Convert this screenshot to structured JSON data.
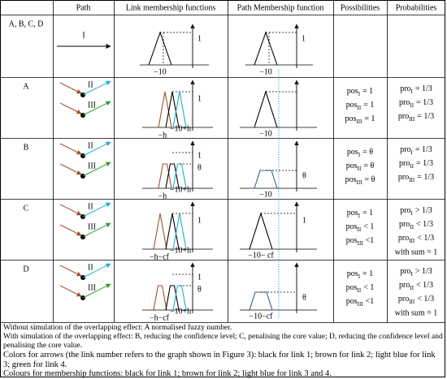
{
  "header": [
    "Path",
    "Link membership functions",
    "Path Membership function",
    "Possibilities",
    "Probabilities"
  ],
  "rows": [
    {
      "label": "A, B, C, D",
      "arrow_label": "I",
      "link_labels": [
        "−10",
        "1"
      ],
      "path_labels": [
        "−10",
        "1"
      ]
    },
    {
      "label": "A",
      "arrow_labels": [
        "II",
        "III"
      ],
      "link_labels": [
        "1",
        "−h",
        "−10+h"
      ],
      "path_labels": [
        "−10"
      ],
      "possibilities": [
        {
          "base": "pos",
          "sub": "I",
          "rest": "= 1"
        },
        {
          "base": "pos",
          "sub": "II",
          "rest": "= 1"
        },
        {
          "base": "pos",
          "sub": "III",
          "rest": "= 1"
        }
      ],
      "probabilities": [
        {
          "base": "pro",
          "sub": "I",
          "rest": "= 1/3"
        },
        {
          "base": "pro",
          "sub": "II",
          "rest": "= 1/3"
        },
        {
          "base": "pro",
          "sub": "III",
          "rest": "= 1/3"
        }
      ]
    },
    {
      "label": "B",
      "arrow_labels": [
        "II",
        "III"
      ],
      "link_labels": [
        "1",
        "θ",
        "−h",
        "−10+h"
      ],
      "path_labels": [
        "θ",
        "−10"
      ],
      "possibilities": [
        {
          "base": "pos",
          "sub": "I",
          "rest": "= θ"
        },
        {
          "base": "pos",
          "sub": "II",
          "rest": "= θ"
        },
        {
          "base": "pos",
          "sub": "III",
          "rest": "= θ"
        }
      ],
      "probabilities": [
        {
          "base": "pro",
          "sub": "I",
          "rest": "= 1/3"
        },
        {
          "base": "pro",
          "sub": "II",
          "rest": "= 1/3"
        },
        {
          "base": "pro",
          "sub": "III",
          "rest": "= 1/3"
        }
      ]
    },
    {
      "label": "C",
      "arrow_labels": [
        "II",
        "III"
      ],
      "link_labels": [
        "1",
        "−h−cf",
        "−10+h"
      ],
      "path_labels": [
        "1",
        "−10− cf"
      ],
      "possibilities": [
        {
          "base": "pos",
          "sub": "I",
          "rest": "= 1"
        },
        {
          "base": "pos",
          "sub": "II",
          "rest": "< 1"
        },
        {
          "base": "pos",
          "sub": "III",
          "rest": "<1"
        }
      ],
      "probabilities": [
        {
          "base": "pro",
          "sub": "I",
          "rest": "> 1/3"
        },
        {
          "base": "pro",
          "sub": "II",
          "rest": "< 1/3"
        },
        {
          "base": "pro",
          "sub": "III",
          "rest": "< 1/3"
        },
        {
          "text": "with sum = 1"
        }
      ]
    },
    {
      "label": "D",
      "arrow_labels": [
        "II",
        "III"
      ],
      "link_labels": [
        "1",
        "θ",
        "−h−cf",
        "−10+h"
      ],
      "path_labels": [
        "θ",
        "−10−cf"
      ],
      "possibilities": [
        {
          "base": "pos",
          "sub": "I",
          "rest": "= 1"
        },
        {
          "base": "pos",
          "sub": "II",
          "rest": "< 1"
        },
        {
          "base": "pos",
          "sub": "III",
          "rest": "<1"
        }
      ],
      "probabilities": [
        {
          "base": "pro",
          "sub": "I",
          "rest": "> 1/3"
        },
        {
          "base": "pro",
          "sub": "II",
          "rest": "< 1/3"
        },
        {
          "base": "pro",
          "sub": "III",
          "rest": "< 1/3"
        },
        {
          "text": "with sum = 1"
        }
      ]
    }
  ],
  "notes": [
    "Without simulation of the overlapping effect: A normalised fuzzy number.",
    "With simulation of the overlapping effect: B, reducing the confidence level; C, penalising the core value; D, reducing the confidence level and penalising the core value.",
    "Colors for arrows (the link number refers to the graph shown in Figure 3): black for link 1; brown for link 2; light blue for link 3; green for link 4.",
    "Colours for membership functions: black for link 1; brown for link 2; light blue for link 3 and 4."
  ]
}
